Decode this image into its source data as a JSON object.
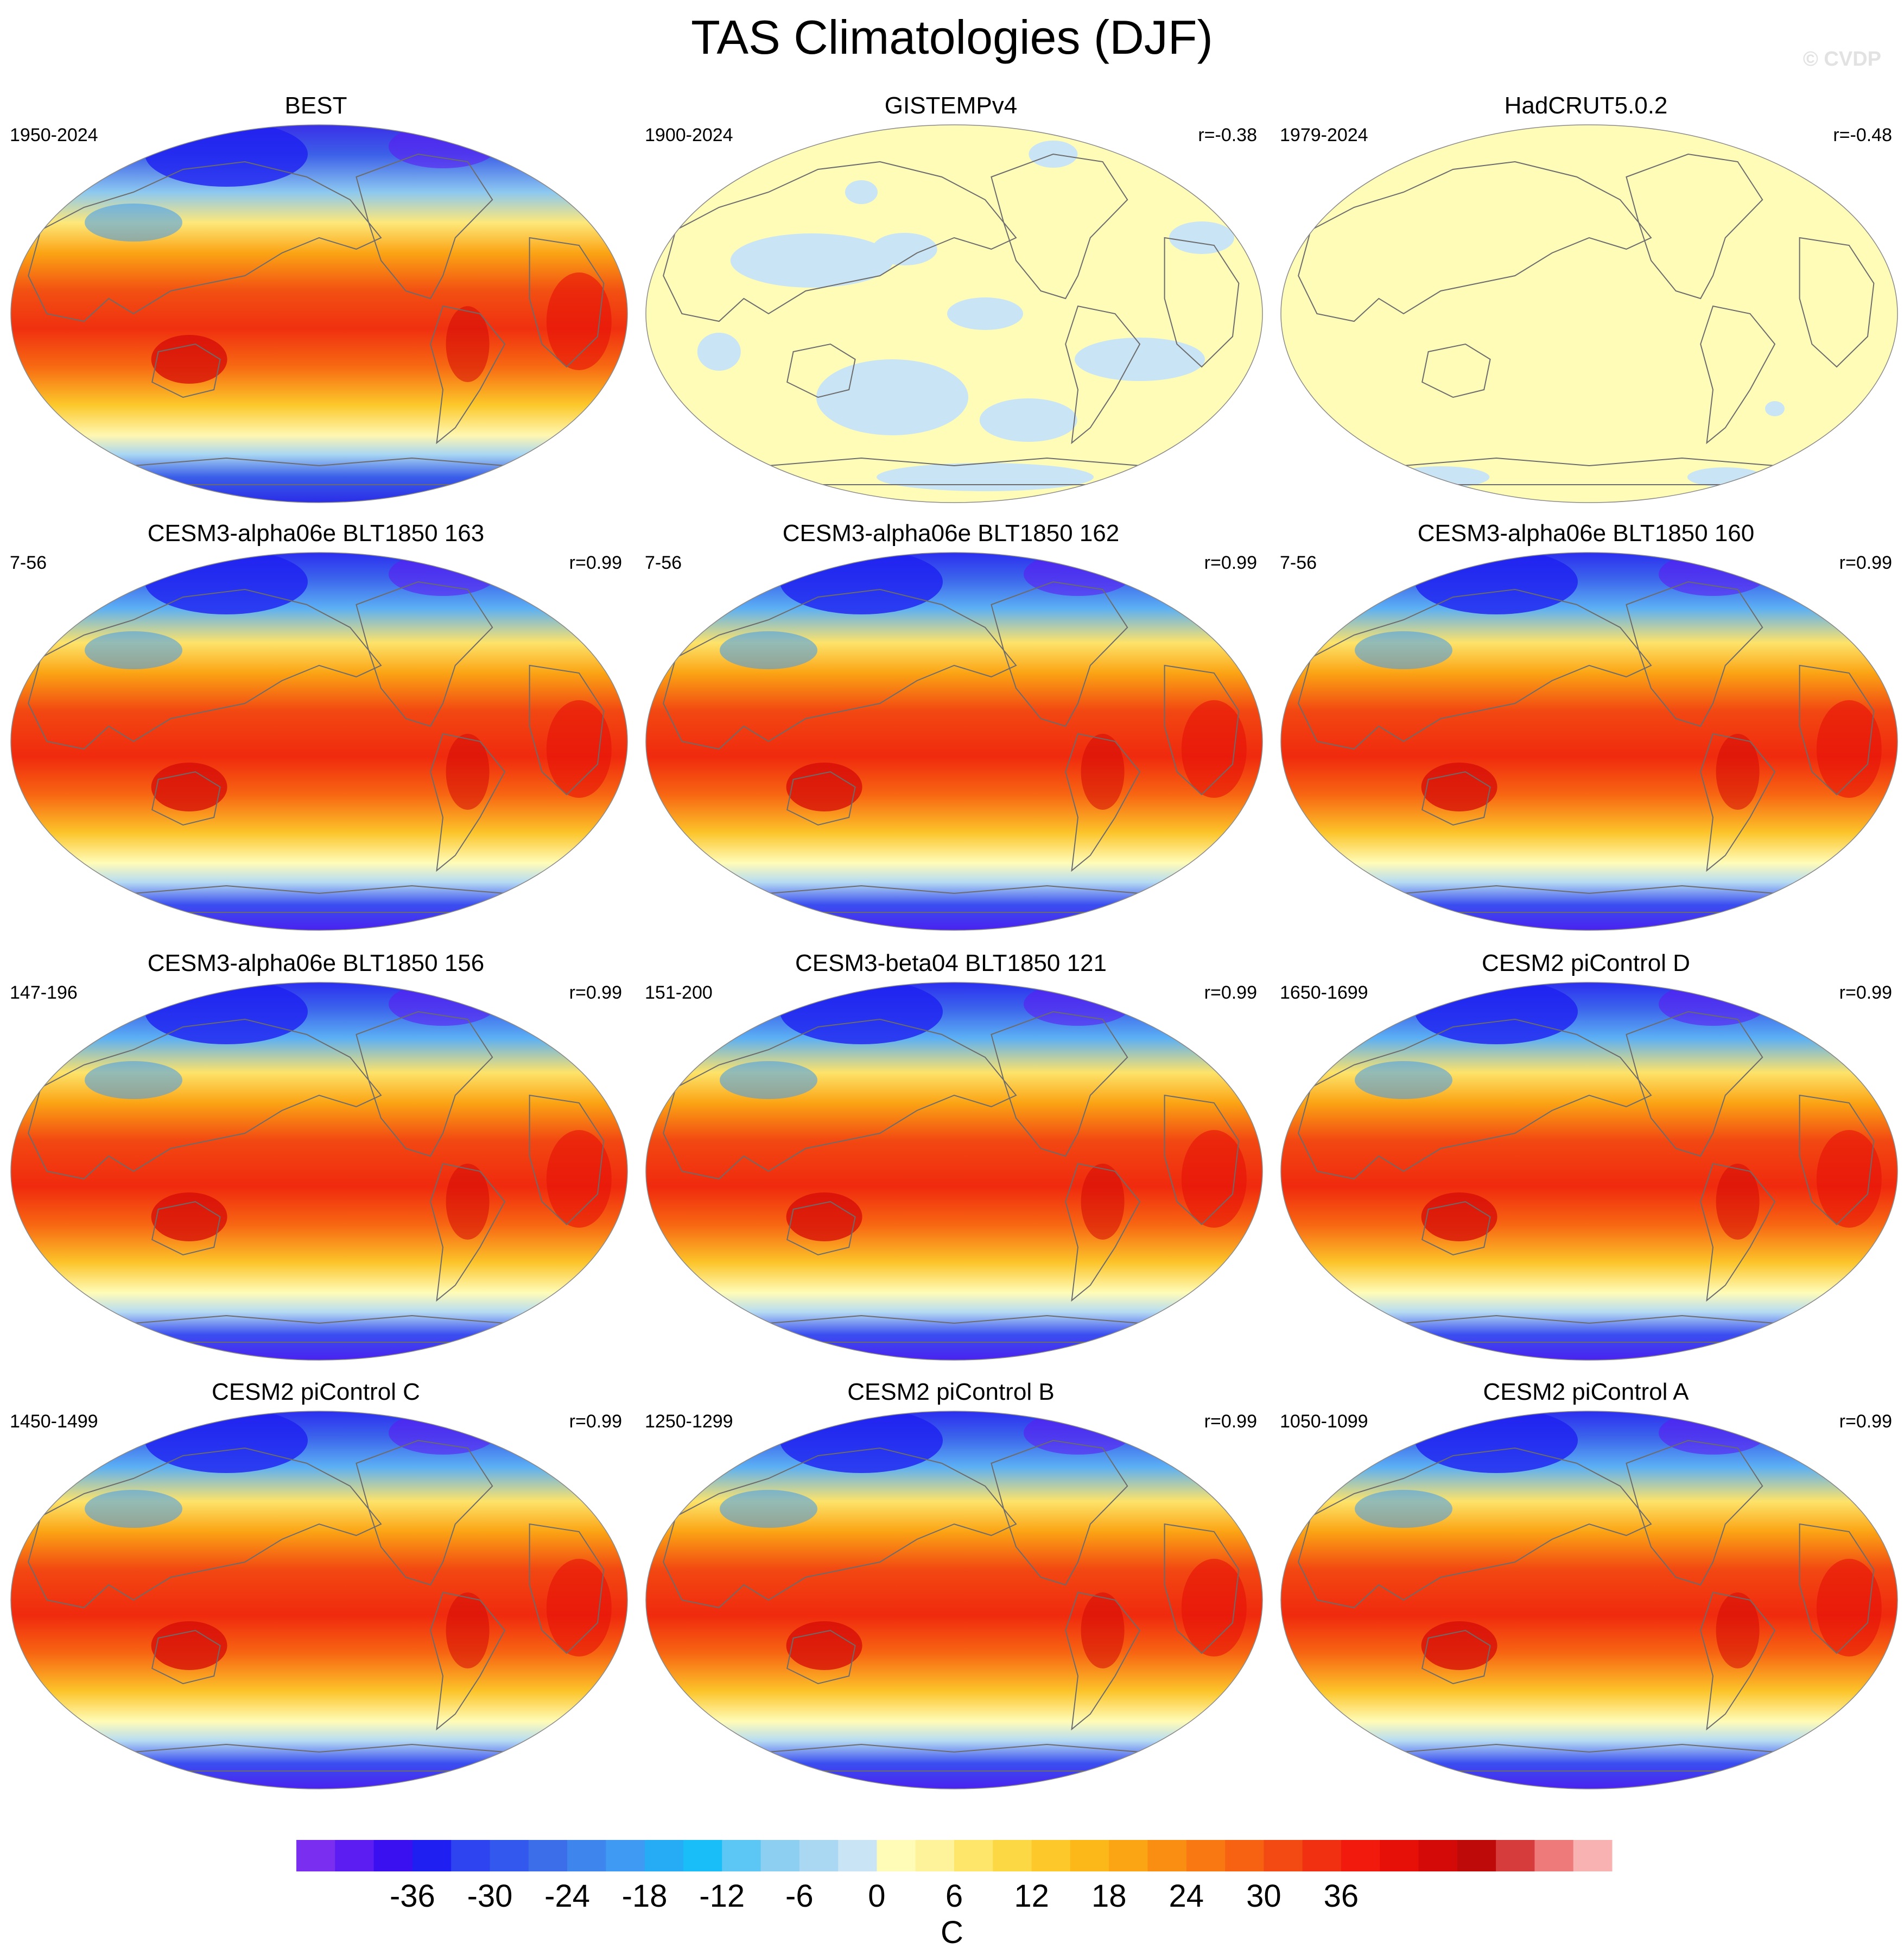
{
  "figure": {
    "title": "TAS Climatologies (DJF)",
    "watermark": "© CVDP"
  },
  "panels": [
    {
      "title": "BEST",
      "period": "1950-2024",
      "corr": "",
      "style": "obs"
    },
    {
      "title": "GISTEMPv4",
      "period": "1900-2024",
      "corr": "r=-0.38",
      "style": "flat"
    },
    {
      "title": "HadCRUT5.0.2",
      "period": "1979-2024",
      "corr": "r=-0.48",
      "style": "flat2"
    },
    {
      "title": "CESM3-alpha06e BLT1850 163",
      "period": "7-56",
      "corr": "r=0.99",
      "style": "model"
    },
    {
      "title": "CESM3-alpha06e BLT1850 162",
      "period": "7-56",
      "corr": "r=0.99",
      "style": "model"
    },
    {
      "title": "CESM3-alpha06e BLT1850 160",
      "period": "7-56",
      "corr": "r=0.99",
      "style": "model"
    },
    {
      "title": "CESM3-alpha06e BLT1850 156",
      "period": "147-196",
      "corr": "r=0.99",
      "style": "model"
    },
    {
      "title": "CESM3-beta04 BLT1850 121",
      "period": "151-200",
      "corr": "r=0.99",
      "style": "model"
    },
    {
      "title": "CESM2 piControl D",
      "period": "1650-1699",
      "corr": "r=0.99",
      "style": "model"
    },
    {
      "title": "CESM2 piControl C",
      "period": "1450-1499",
      "corr": "r=0.99",
      "style": "model"
    },
    {
      "title": "CESM2 piControl B",
      "period": "1250-1299",
      "corr": "r=0.99",
      "style": "model"
    },
    {
      "title": "CESM2 piControl A",
      "period": "1050-1099",
      "corr": "r=0.99",
      "style": "model"
    }
  ],
  "colorbar": {
    "unit": "C",
    "tick_labels": [
      "-36",
      "-30",
      "-24",
      "-18",
      "-12",
      "-6",
      "0",
      "6",
      "12",
      "18",
      "24",
      "30",
      "36"
    ],
    "colors": [
      "#7a2ef0",
      "#5b1df2",
      "#3a10f0",
      "#1e1ff0",
      "#2d44f0",
      "#3358ee",
      "#3c6eea",
      "#3f85ee",
      "#3e9af2",
      "#26abf5",
      "#19bdf8",
      "#5cc6f4",
      "#8ccff0",
      "#aad8f2",
      "#c9e4f4",
      "#fffcb8",
      "#fef29a",
      "#fde66a",
      "#fdd845",
      "#fcc82a",
      "#fcb818",
      "#fba414",
      "#fa8e12",
      "#f97812",
      "#f66212",
      "#f24a12",
      "#f03010",
      "#f21a0c",
      "#e61008",
      "#d40a08",
      "#bf0a0a",
      "#d63c3c",
      "#ee7a7a",
      "#f8b2b2"
    ]
  }
}
